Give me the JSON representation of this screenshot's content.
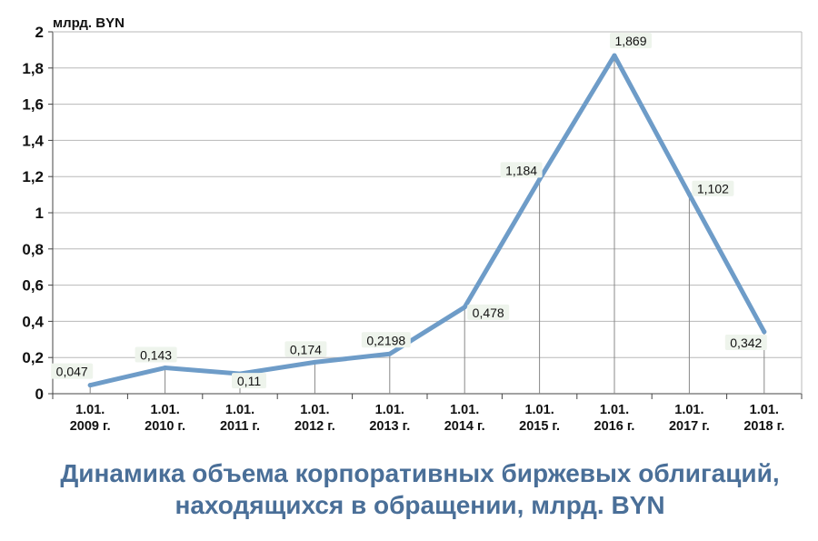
{
  "chart_data": {
    "type": "line",
    "title": [
      "Динамика объема корпоративных биржевых облигаций,",
      "находящихся в обращении, млрд. BYN"
    ],
    "unit_label": "млрд. BYN",
    "xlabel": "",
    "ylabel": "",
    "categories": [
      [
        "1.01.",
        "2009 г."
      ],
      [
        "1.01.",
        "2010 г."
      ],
      [
        "1.01.",
        "2011 г."
      ],
      [
        "1.01.",
        "2012 г."
      ],
      [
        "1.01.",
        "2013 г."
      ],
      [
        "1.01.",
        "2014 г."
      ],
      [
        "1.01.",
        "2015 г."
      ],
      [
        "1.01.",
        "2016 г."
      ],
      [
        "1.01.",
        "2017 г."
      ],
      [
        "1.01.",
        "2018 г."
      ]
    ],
    "values": [
      0.047,
      0.143,
      0.11,
      0.174,
      0.2198,
      0.478,
      1.184,
      1.869,
      1.102,
      0.342
    ],
    "value_labels": [
      "0,047",
      "0,143",
      "0,11",
      "0,174",
      "0,2198",
      "0,478",
      "1,184",
      "1,869",
      "1,102",
      "0,342"
    ],
    "ylim": [
      0,
      2
    ],
    "y_ticks": [
      0,
      0.2,
      0.4,
      0.6,
      0.8,
      1,
      1.2,
      1.4,
      1.6,
      1.8,
      2
    ],
    "y_tick_labels": [
      "0",
      "0,2",
      "0,4",
      "0,6",
      "0,8",
      "1",
      "1,2",
      "1,4",
      "1,6",
      "1,8",
      "2"
    ],
    "grid": true,
    "legend": "none",
    "colors": {
      "line": "#6e9cc8",
      "grid": "#b8b8b8",
      "title": "#4a6f98",
      "drop_line": "#888888",
      "label_bg": "#eef4ec"
    }
  }
}
